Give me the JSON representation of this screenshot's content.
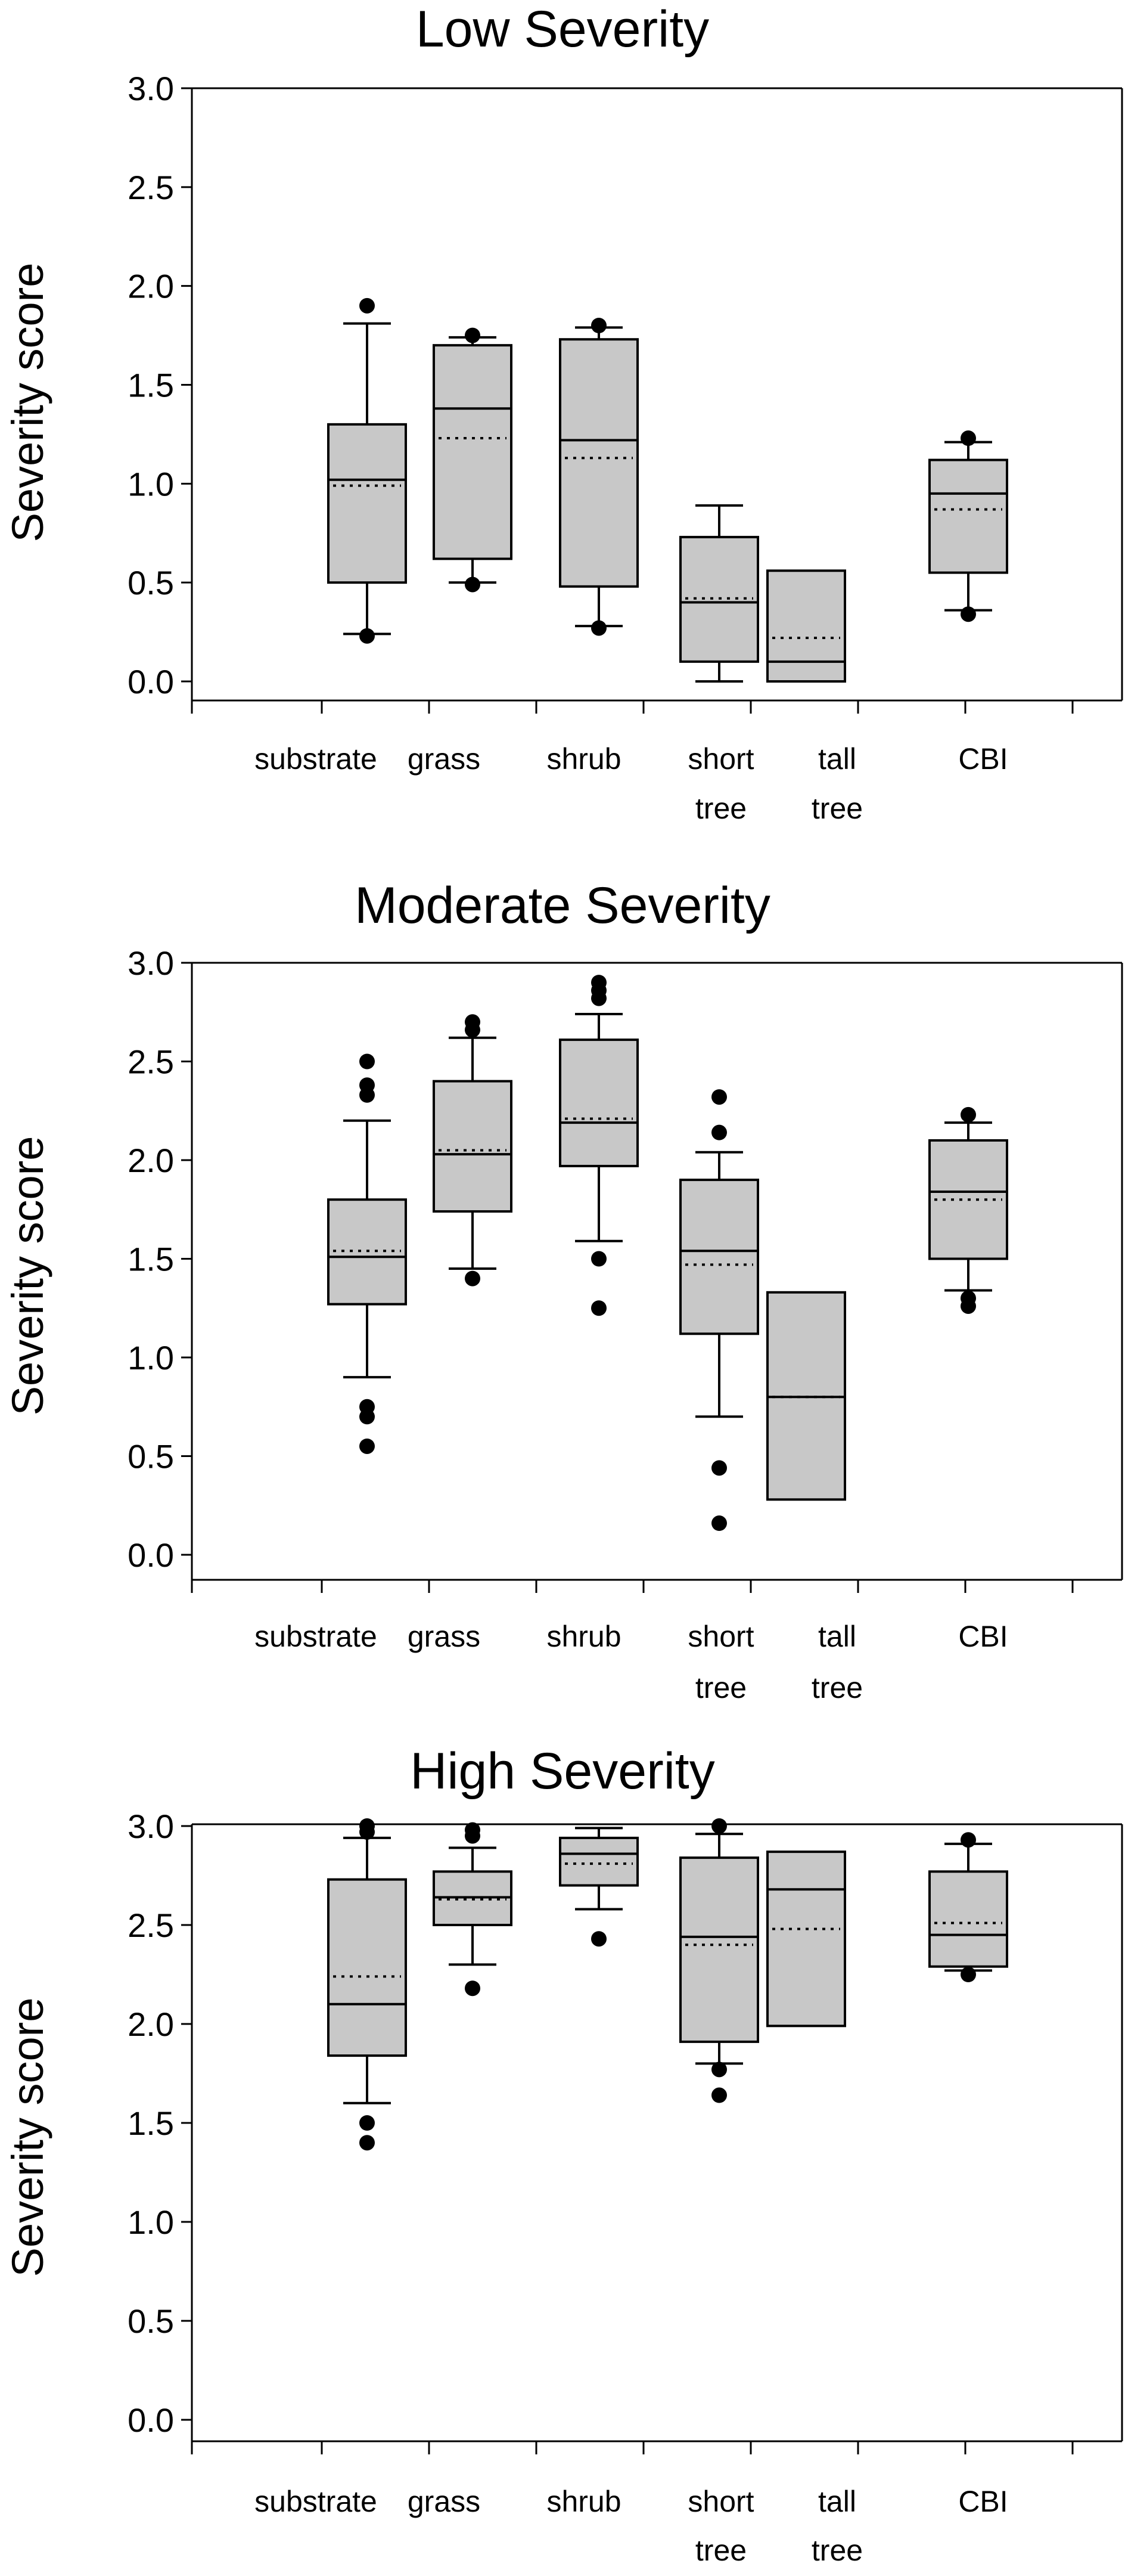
{
  "chart_data": [
    {
      "type": "box",
      "title": "Low Severity",
      "ylabel": "Severity score",
      "xlabel": "",
      "ylim": [
        0,
        3
      ],
      "yticks": [
        "0.0",
        "0.5",
        "1.0",
        "1.5",
        "2.0",
        "2.5",
        "3.0"
      ],
      "categories": [
        "substrate",
        "grass",
        "shrub",
        "short tree",
        "tall tree",
        "CBI"
      ],
      "boxes": [
        {
          "category": "substrate",
          "whisker_low": 0.24,
          "q1": 0.5,
          "median": 1.02,
          "mean": 0.99,
          "q3": 1.3,
          "whisker_high": 1.81,
          "outliers": [
            0.23,
            1.9
          ]
        },
        {
          "category": "grass",
          "whisker_low": 0.5,
          "q1": 0.62,
          "median": 1.38,
          "mean": 1.23,
          "q3": 1.7,
          "whisker_high": 1.74,
          "outliers": [
            0.49,
            1.75
          ]
        },
        {
          "category": "shrub",
          "whisker_low": 0.28,
          "q1": 0.48,
          "median": 1.22,
          "mean": 1.13,
          "q3": 1.73,
          "whisker_high": 1.79,
          "outliers": [
            0.27,
            1.8
          ]
        },
        {
          "category": "short tree",
          "whisker_low": 0.0,
          "q1": 0.1,
          "median": 0.4,
          "mean": 0.42,
          "q3": 0.73,
          "whisker_high": 0.89,
          "outliers": []
        },
        {
          "category": "tall tree",
          "whisker_low": null,
          "q1": 0.0,
          "median": 0.1,
          "mean": 0.22,
          "q3": 0.56,
          "whisker_high": null,
          "outliers": []
        },
        {
          "category": "CBI",
          "whisker_low": 0.36,
          "q1": 0.55,
          "median": 0.95,
          "mean": 0.87,
          "q3": 1.12,
          "whisker_high": 1.21,
          "outliers": [
            0.34,
            1.23
          ]
        }
      ]
    },
    {
      "type": "box",
      "title": "Moderate Severity",
      "ylabel": "Severity score",
      "xlabel": "",
      "ylim": [
        0,
        3
      ],
      "yticks": [
        "0.0",
        "0.5",
        "1.0",
        "1.5",
        "2.0",
        "2.5",
        "3.0"
      ],
      "categories": [
        "substrate",
        "grass",
        "shrub",
        "short tree",
        "tall tree",
        "CBI"
      ],
      "boxes": [
        {
          "category": "substrate",
          "whisker_low": 0.9,
          "q1": 1.27,
          "median": 1.51,
          "mean": 1.54,
          "q3": 1.8,
          "whisker_high": 2.2,
          "outliers": [
            0.55,
            0.7,
            0.75,
            2.33,
            2.38,
            2.5
          ]
        },
        {
          "category": "grass",
          "whisker_low": 1.45,
          "q1": 1.74,
          "median": 2.03,
          "mean": 2.05,
          "q3": 2.4,
          "whisker_high": 2.62,
          "outliers": [
            1.4,
            2.66,
            2.7
          ]
        },
        {
          "category": "shrub",
          "whisker_low": 1.59,
          "q1": 1.97,
          "median": 2.19,
          "mean": 2.21,
          "q3": 2.61,
          "whisker_high": 2.74,
          "outliers": [
            1.25,
            1.5,
            2.82,
            2.86,
            2.9
          ]
        },
        {
          "category": "short tree",
          "whisker_low": 0.7,
          "q1": 1.12,
          "median": 1.54,
          "mean": 1.47,
          "q3": 1.9,
          "whisker_high": 2.04,
          "outliers": [
            0.16,
            0.44,
            2.14,
            2.32
          ]
        },
        {
          "category": "tall tree",
          "whisker_low": null,
          "q1": 0.28,
          "median": 0.8,
          "mean": 0.8,
          "q3": 1.33,
          "whisker_high": null,
          "outliers": []
        },
        {
          "category": "CBI",
          "whisker_low": 1.34,
          "q1": 1.5,
          "median": 1.84,
          "mean": 1.8,
          "q3": 2.1,
          "whisker_high": 2.19,
          "outliers": [
            1.26,
            1.3,
            2.23
          ]
        }
      ]
    },
    {
      "type": "box",
      "title": "High Severity",
      "ylabel": "Severity score",
      "xlabel": "",
      "ylim": [
        0,
        3
      ],
      "yticks": [
        "0.0",
        "0.5",
        "1.0",
        "1.5",
        "2.0",
        "2.5",
        "3.0"
      ],
      "categories": [
        "substrate",
        "grass",
        "shrub",
        "short tree",
        "tall tree",
        "CBI"
      ],
      "boxes": [
        {
          "category": "substrate",
          "whisker_low": 1.6,
          "q1": 1.84,
          "median": 2.1,
          "mean": 2.24,
          "q3": 2.73,
          "whisker_high": 2.94,
          "outliers": [
            1.4,
            1.5,
            2.97,
            3.0
          ]
        },
        {
          "category": "grass",
          "whisker_low": 2.3,
          "q1": 2.5,
          "median": 2.64,
          "mean": 2.63,
          "q3": 2.77,
          "whisker_high": 2.89,
          "outliers": [
            2.18,
            2.95,
            2.98
          ]
        },
        {
          "category": "shrub",
          "whisker_low": 2.58,
          "q1": 2.7,
          "median": 2.86,
          "mean": 2.81,
          "q3": 2.94,
          "whisker_high": 2.99,
          "outliers": [
            2.43
          ]
        },
        {
          "category": "short tree",
          "whisker_low": 1.8,
          "q1": 1.91,
          "median": 2.44,
          "mean": 2.4,
          "q3": 2.84,
          "whisker_high": 2.96,
          "outliers": [
            1.64,
            1.77,
            3.0
          ]
        },
        {
          "category": "tall tree",
          "whisker_low": null,
          "q1": 1.99,
          "median": 2.68,
          "mean": 2.48,
          "q3": 2.87,
          "whisker_high": null,
          "outliers": []
        },
        {
          "category": "CBI",
          "whisker_low": 2.27,
          "q1": 2.29,
          "median": 2.45,
          "mean": 2.51,
          "q3": 2.77,
          "whisker_high": 2.91,
          "outliers": [
            2.25,
            2.93
          ]
        }
      ]
    }
  ],
  "colors": {
    "box_fill": "#c8c8c8",
    "stroke": "#000000",
    "background": "#ffffff"
  }
}
